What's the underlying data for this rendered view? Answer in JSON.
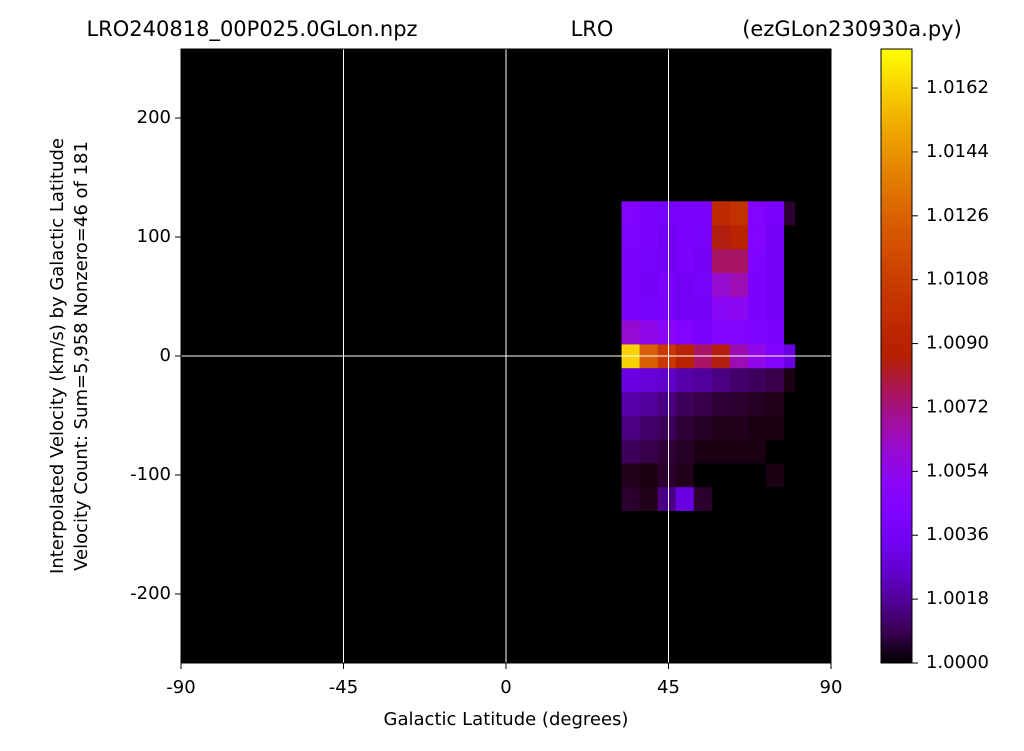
{
  "chart_data": {
    "type": "heatmap",
    "title_left": "LRO240818_00P025.0GLon.npz",
    "title_center": "LRO",
    "title_right": "(ezGLon230930a.py)",
    "xlabel": "Galactic Latitude (degrees)",
    "ylabel": [
      "Interpolated Velocity (km/s) by Galactic Latitude",
      "Velocity Count: Sum=5,958 Nonzero=46 of 181"
    ],
    "xlim": [
      -90,
      90
    ],
    "xticks": [
      -90,
      -45,
      0,
      45,
      90
    ],
    "ylim": [
      -258,
      258
    ],
    "yticks": [
      -200,
      -100,
      0,
      100,
      200
    ],
    "vlines": [
      -45,
      0,
      45
    ],
    "hlines": [
      0
    ],
    "colormap": "gnuplot",
    "clim": [
      1.0,
      1.0173
    ],
    "cticks": [
      {
        "value": 1.0,
        "label": "1.0000"
      },
      1.0018,
      1.0036,
      1.0054,
      1.0072,
      {
        "value": 1.009,
        "label": "1.0090"
      },
      1.0108,
      1.0126,
      1.0144,
      1.0162
    ],
    "x_bins": [
      32,
      37,
      42,
      47,
      52,
      57,
      62,
      67,
      72,
      77,
      80
    ],
    "y_bins": [
      -130,
      -110,
      -90,
      -70,
      -50,
      -30,
      -10,
      10,
      30,
      50,
      70,
      90,
      110,
      130
    ],
    "values": [
      [
        1.0005,
        1.0003,
        1.0015,
        1.003,
        1.0005,
        1.0,
        1.0,
        1.0,
        1.0,
        1.0
      ],
      [
        1.0003,
        1.0002,
        1.0005,
        1.0003,
        1.0,
        1.0,
        1.0,
        1.0,
        1.0002,
        1.0
      ],
      [
        1.001,
        1.0008,
        1.0006,
        1.0004,
        1.0002,
        1.0002,
        1.0002,
        1.0002,
        1.0,
        1.0
      ],
      [
        1.0015,
        1.0012,
        1.001,
        1.0006,
        1.0004,
        1.0003,
        1.0003,
        1.0002,
        1.0002,
        1.0
      ],
      [
        1.002,
        1.0018,
        1.0015,
        1.001,
        1.0008,
        1.0006,
        1.0005,
        1.0004,
        1.0003,
        1.0
      ],
      [
        1.003,
        1.0028,
        1.0025,
        1.002,
        1.0018,
        1.0015,
        1.0012,
        1.001,
        1.0008,
        1.0002
      ],
      [
        1.0162,
        1.0125,
        1.0105,
        1.009,
        1.0075,
        1.0085,
        1.0065,
        1.0055,
        1.0045,
        1.003
      ],
      [
        1.006,
        1.0055,
        1.005,
        1.0045,
        1.004,
        1.0045,
        1.0045,
        1.0042,
        1.004,
        1.0
      ],
      [
        1.004,
        1.0038,
        1.004,
        1.0035,
        1.0035,
        1.005,
        1.0052,
        1.004,
        1.0035,
        1.0
      ],
      [
        1.004,
        1.0035,
        1.004,
        1.0035,
        1.0038,
        1.006,
        1.0065,
        1.004,
        1.0035,
        1.0
      ],
      [
        1.004,
        1.0038,
        1.0035,
        1.004,
        1.0035,
        1.0075,
        1.0075,
        1.0042,
        1.0035,
        1.0
      ],
      [
        1.0042,
        1.004,
        1.0035,
        1.004,
        1.0038,
        1.0085,
        1.009,
        1.0045,
        1.0035,
        1.0
      ],
      [
        1.0045,
        1.004,
        1.0038,
        1.004,
        1.004,
        1.0095,
        1.01,
        1.0045,
        1.004,
        1.0005
      ]
    ]
  }
}
